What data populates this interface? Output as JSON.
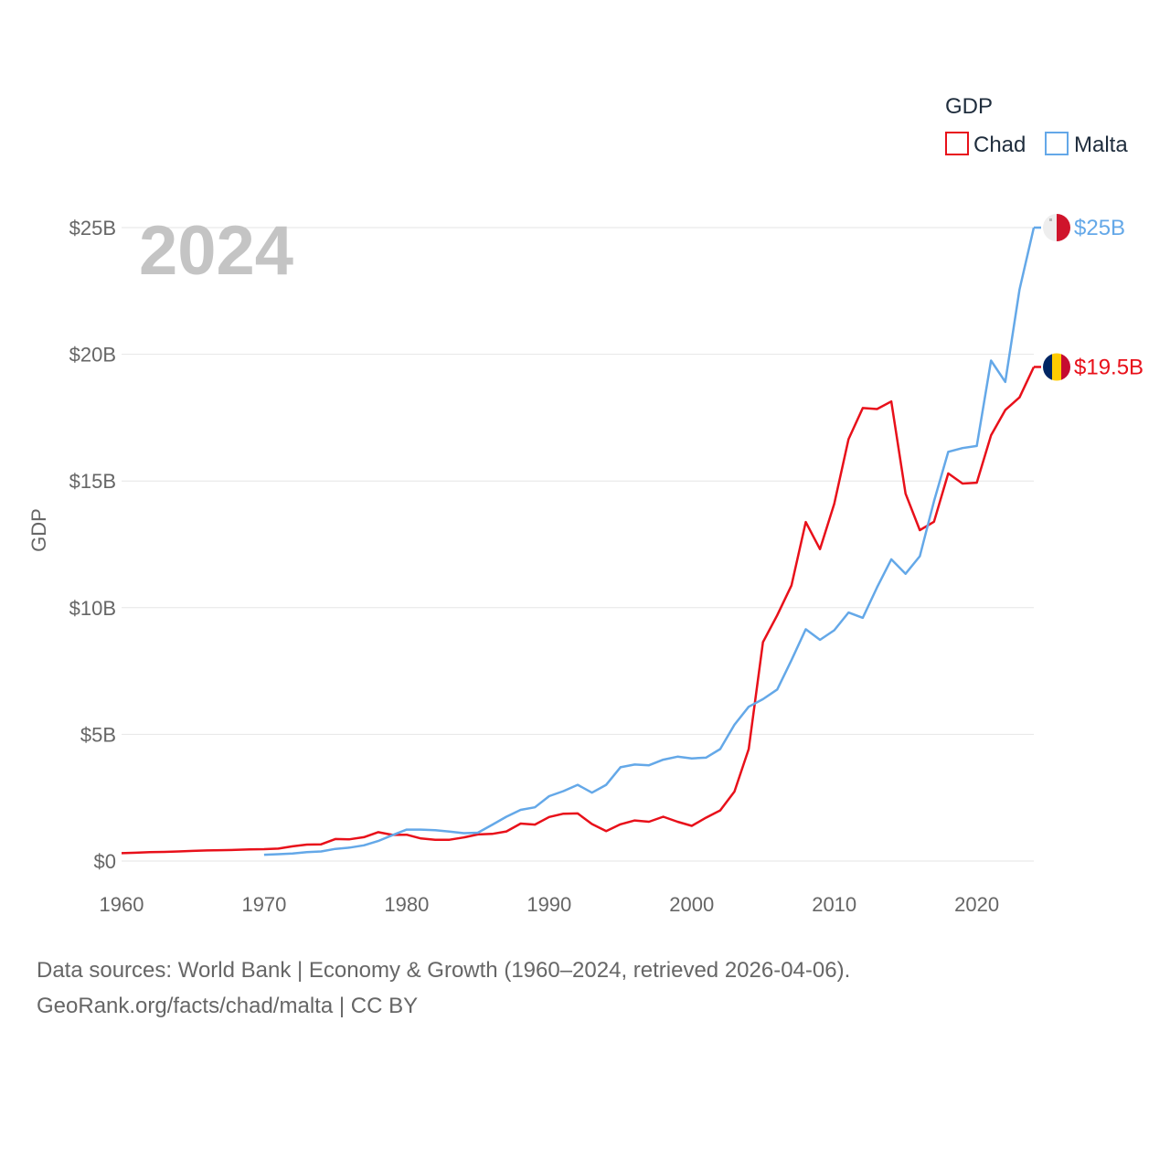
{
  "chart_data": {
    "type": "line",
    "title": "",
    "current_year_label": "2024",
    "xlabel": "",
    "ylabel": "GDP",
    "xlim": [
      1960,
      2024
    ],
    "ylim": [
      0,
      25
    ],
    "x_ticks": [
      1960,
      1970,
      1980,
      1990,
      2000,
      2010,
      2020
    ],
    "y_ticks": [
      {
        "value": 0,
        "label": "$0"
      },
      {
        "value": 5,
        "label": "$5B"
      },
      {
        "value": 10,
        "label": "$10B"
      },
      {
        "value": 15,
        "label": "$15B"
      },
      {
        "value": 20,
        "label": "$20B"
      },
      {
        "value": 25,
        "label": "$25B"
      }
    ],
    "grid": true,
    "legend": {
      "title": "GDP",
      "position": "top-right"
    },
    "units": "billions USD",
    "series": [
      {
        "name": "Chad",
        "color": "#e8101a",
        "end_label": "$19.5B",
        "flag": "chad",
        "x": [
          1960,
          1961,
          1962,
          1963,
          1964,
          1965,
          1966,
          1967,
          1968,
          1969,
          1970,
          1971,
          1972,
          1973,
          1974,
          1975,
          1976,
          1977,
          1978,
          1979,
          1980,
          1981,
          1982,
          1983,
          1984,
          1985,
          1986,
          1987,
          1988,
          1989,
          1990,
          1991,
          1992,
          1993,
          1994,
          1995,
          1996,
          1997,
          1998,
          1999,
          2000,
          2001,
          2002,
          2003,
          2004,
          2005,
          2006,
          2007,
          2008,
          2009,
          2010,
          2011,
          2012,
          2013,
          2014,
          2015,
          2016,
          2017,
          2018,
          2019,
          2020,
          2021,
          2022,
          2023,
          2024
        ],
        "values": [
          0.31,
          0.33,
          0.35,
          0.36,
          0.38,
          0.4,
          0.42,
          0.43,
          0.44,
          0.46,
          0.47,
          0.49,
          0.58,
          0.65,
          0.66,
          0.87,
          0.86,
          0.94,
          1.14,
          1.03,
          1.04,
          0.89,
          0.84,
          0.84,
          0.93,
          1.05,
          1.07,
          1.17,
          1.48,
          1.44,
          1.74,
          1.87,
          1.88,
          1.46,
          1.18,
          1.45,
          1.6,
          1.55,
          1.75,
          1.55,
          1.39,
          1.71,
          2.0,
          2.74,
          4.42,
          8.64,
          9.7,
          10.88,
          13.38,
          12.31,
          14.1,
          16.65,
          17.88,
          17.84,
          18.14,
          14.5,
          13.06,
          13.39,
          15.3,
          14.9,
          14.93,
          16.8,
          17.8,
          18.3,
          19.5
        ]
      },
      {
        "name": "Malta",
        "color": "#64a8e8",
        "end_label": "$25B",
        "flag": "malta",
        "x": [
          1970,
          1971,
          1972,
          1973,
          1974,
          1975,
          1976,
          1977,
          1978,
          1979,
          1980,
          1981,
          1982,
          1983,
          1984,
          1985,
          1986,
          1987,
          1988,
          1989,
          1990,
          1991,
          1992,
          1993,
          1994,
          1995,
          1996,
          1997,
          1998,
          1999,
          2000,
          2001,
          2002,
          2003,
          2004,
          2005,
          2006,
          2007,
          2008,
          2009,
          2010,
          2011,
          2012,
          2013,
          2014,
          2015,
          2016,
          2017,
          2018,
          2019,
          2020,
          2021,
          2022,
          2023,
          2024
        ],
        "values": [
          0.25,
          0.27,
          0.3,
          0.35,
          0.38,
          0.48,
          0.53,
          0.62,
          0.79,
          1.02,
          1.24,
          1.24,
          1.22,
          1.16,
          1.1,
          1.12,
          1.43,
          1.75,
          2.02,
          2.12,
          2.56,
          2.76,
          3.01,
          2.7,
          3.01,
          3.7,
          3.81,
          3.78,
          4.0,
          4.12,
          4.05,
          4.08,
          4.42,
          5.38,
          6.09,
          6.39,
          6.77,
          7.93,
          9.15,
          8.73,
          9.11,
          9.81,
          9.6,
          10.8,
          11.91,
          11.34,
          12.03,
          14.2,
          16.15,
          16.3,
          16.38,
          19.75,
          18.91,
          22.56,
          25.0
        ]
      }
    ]
  },
  "source": {
    "line1": "Data sources: World Bank | Economy & Growth (1960–2024, retrieved 2026-04-06).",
    "line2": "GeoRank.org/facts/chad/malta | CC BY"
  }
}
